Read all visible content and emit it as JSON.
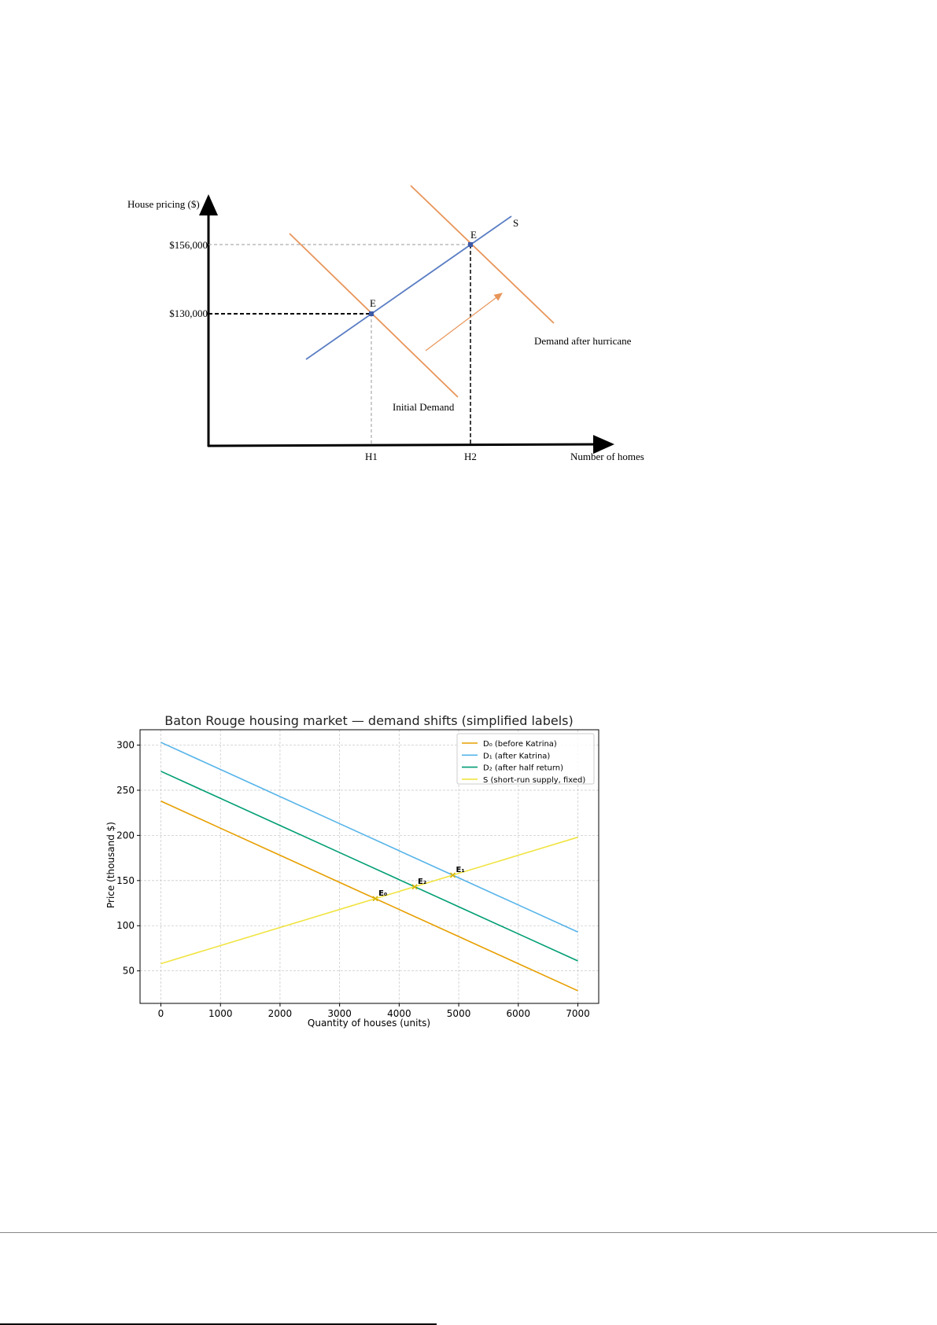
{
  "diagram": {
    "y_axis_label": "House pricing ($)",
    "x_axis_label": "Number of homes",
    "price_high": "$156,000",
    "price_low": "$130,000",
    "supply_label": "S",
    "equilibrium_label_1": "E",
    "equilibrium_label_2": "E",
    "initial_demand_label": "Initial Demand",
    "new_demand_label": "Demand after hurricane",
    "h1_label": "H1",
    "h2_label": "H2",
    "colors": {
      "demand": "#e8955a",
      "supply": "#5b7ec4",
      "axis": "#000000"
    }
  },
  "chart_data": {
    "type": "line",
    "title": "Baton Rouge housing market — demand shifts (simplified labels)",
    "xlabel": "Quantity of houses (units)",
    "ylabel": "Price (thousand $)",
    "xlim": [
      -350,
      7350
    ],
    "ylim": [
      14,
      317
    ],
    "xticks": [
      "0",
      "1000",
      "2000",
      "3000",
      "4000",
      "5000",
      "6000",
      "7000"
    ],
    "yticks": [
      "50",
      "100",
      "150",
      "200",
      "250",
      "300"
    ],
    "grid": true,
    "legend_position": "top-right",
    "x": [
      0,
      1000,
      2000,
      3000,
      4000,
      5000,
      6000,
      7000
    ],
    "series": [
      {
        "name": "D₀ (before Katrina)",
        "color": "#e69f00",
        "values": [
          238,
          208,
          178,
          148,
          118,
          88,
          58,
          28
        ]
      },
      {
        "name": "D₁ (after Katrina)",
        "color": "#56b4e9",
        "values": [
          303,
          273,
          243,
          213,
          183,
          153,
          123,
          93
        ]
      },
      {
        "name": "D₂ (after half return)",
        "color": "#009e73",
        "values": [
          271,
          241,
          211,
          181,
          151,
          121,
          91,
          61
        ]
      },
      {
        "name": "S (short-run supply, fixed)",
        "color": "#f0e442",
        "values": [
          58,
          78,
          98,
          118,
          138,
          158,
          178,
          198
        ]
      }
    ],
    "points": [
      {
        "label": "E₀",
        "x": 3600,
        "y": 130
      },
      {
        "label": "E₂",
        "x": 4260,
        "y": 143
      },
      {
        "label": "E₁",
        "x": 4900,
        "y": 156
      }
    ]
  }
}
